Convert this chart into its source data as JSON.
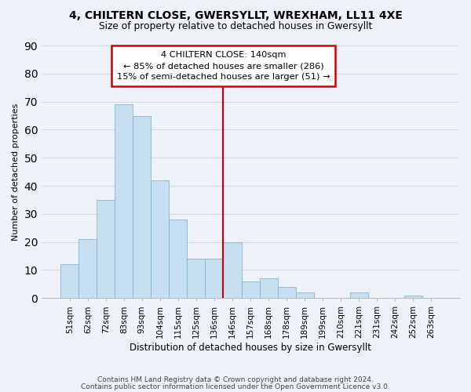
{
  "title1": "4, CHILTERN CLOSE, GWERSYLLT, WREXHAM, LL11 4XE",
  "title2": "Size of property relative to detached houses in Gwersyllt",
  "xlabel": "Distribution of detached houses by size in Gwersyllt",
  "ylabel": "Number of detached properties",
  "bar_labels": [
    "51sqm",
    "62sqm",
    "72sqm",
    "83sqm",
    "93sqm",
    "104sqm",
    "115sqm",
    "125sqm",
    "136sqm",
    "146sqm",
    "157sqm",
    "168sqm",
    "178sqm",
    "189sqm",
    "199sqm",
    "210sqm",
    "221sqm",
    "231sqm",
    "242sqm",
    "252sqm",
    "263sqm"
  ],
  "bar_values": [
    12,
    21,
    35,
    69,
    65,
    42,
    28,
    14,
    14,
    20,
    6,
    7,
    4,
    2,
    0,
    0,
    2,
    0,
    0,
    1,
    0
  ],
  "bar_color": "#c6dff0",
  "bar_edge_color": "#7fb8d8",
  "grid_color": "#d0d8e8",
  "vline_x_index": 8.5,
  "vline_color": "#cc0000",
  "annotation_title": "4 CHILTERN CLOSE: 140sqm",
  "annotation_line1": "← 85% of detached houses are smaller (286)",
  "annotation_line2": "15% of semi-detached houses are larger (51) →",
  "annotation_box_color": "#ffffff",
  "annotation_box_edge": "#cc0000",
  "ylim": [
    0,
    90
  ],
  "yticks": [
    0,
    10,
    20,
    30,
    40,
    50,
    60,
    70,
    80,
    90
  ],
  "footer1": "Contains HM Land Registry data © Crown copyright and database right 2024.",
  "footer2": "Contains public sector information licensed under the Open Government Licence v3.0.",
  "background_color": "#eef2f8"
}
